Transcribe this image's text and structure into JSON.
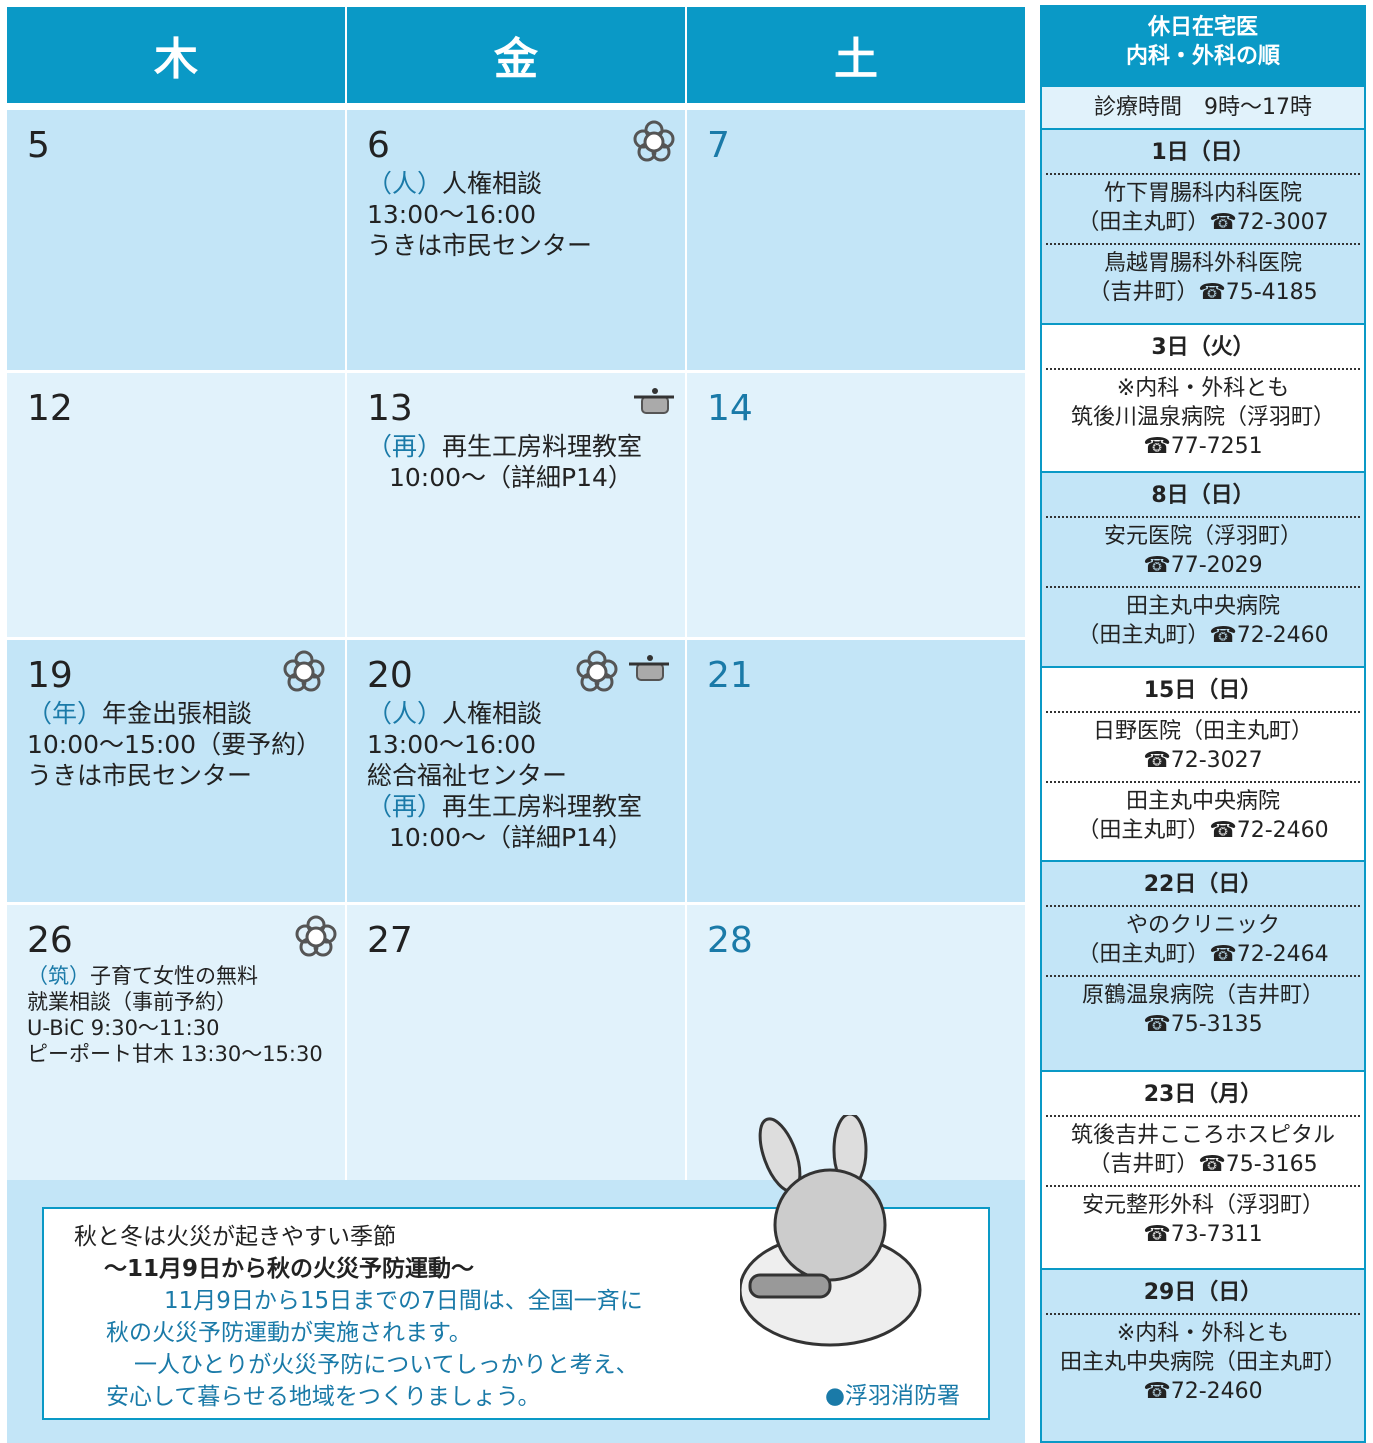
{
  "calendar": {
    "headers": [
      "木",
      "金",
      "土"
    ],
    "rows": [
      {
        "cells": [
          {
            "day": "5",
            "events": []
          },
          {
            "day": "6",
            "events": [
              {
                "tag": "（人）",
                "text": "人権相談",
                "lines": [
                  "13:00～16:00",
                  "うきは市民センター"
                ]
              }
            ]
          },
          {
            "day": "7",
            "events": []
          }
        ]
      },
      {
        "cells": [
          {
            "day": "12",
            "events": []
          },
          {
            "day": "13",
            "events": [
              {
                "tag": "（再）",
                "text": "再生工房料理教室",
                "lines": [
                  "10:00～（詳細P14）"
                ]
              }
            ]
          },
          {
            "day": "14",
            "events": []
          }
        ]
      },
      {
        "cells": [
          {
            "day": "19",
            "events": [
              {
                "tag": "（年）",
                "text": "年金出張相談",
                "lines": [
                  "10:00～15:00（要予約）",
                  "うきは市民センター"
                ]
              }
            ]
          },
          {
            "day": "20",
            "events": [
              {
                "tag": "（人）",
                "text": "人権相談",
                "lines": [
                  "13:00～16:00",
                  "総合福祉センター"
                ]
              },
              {
                "tag": "（再）",
                "text": "再生工房料理教室",
                "lines": [
                  "10:00～（詳細P14）"
                ]
              }
            ]
          },
          {
            "day": "21",
            "events": []
          }
        ]
      },
      {
        "cells": [
          {
            "day": "26",
            "events": [
              {
                "tag": "（筑）",
                "text": "子育て女性の無料",
                "lines": [
                  "就業相談（事前予約）",
                  "U-BiC 9:30～11:30",
                  "ピーポート甘木 13:30～15:30"
                ]
              }
            ]
          },
          {
            "day": "27",
            "events": []
          },
          {
            "day": "28",
            "events": []
          }
        ]
      }
    ]
  },
  "notice": {
    "title": "秋と冬は火災が起きやすい季節",
    "subtitle": "～11月9日から秋の火災予防運動～",
    "body": [
      "11月9日から15日までの7日間は、全国一斉に",
      "秋の火災予防運動が実施されます。",
      "一人ひとりが火災予防についてしっかりと考え、",
      "安心して暮らせる地域をつくりましょう。"
    ],
    "source": "●浮羽消防署"
  },
  "sidebar": {
    "title": [
      "休日在宅医",
      "内科・外科の順"
    ],
    "hours": "診療時間　9時～17時",
    "days": [
      {
        "date": "1日（日）",
        "entries": [
          [
            "竹下胃腸科内科医院",
            "（田主丸町）☎72-3007"
          ],
          [
            "鳥越胃腸科外科医院",
            "（吉井町）☎75-4185"
          ]
        ]
      },
      {
        "date": "3日（火）",
        "entries": [
          [
            "※内科・外科とも",
            "筑後川温泉病院（浮羽町）",
            "☎77-7251"
          ]
        ]
      },
      {
        "date": "8日（日）",
        "entries": [
          [
            "安元医院（浮羽町）",
            "☎77-2029"
          ],
          [
            "田主丸中央病院",
            "（田主丸町）☎72-2460"
          ]
        ]
      },
      {
        "date": "15日（日）",
        "entries": [
          [
            "日野医院（田主丸町）",
            "☎72-3027"
          ],
          [
            "田主丸中央病院",
            "（田主丸町）☎72-2460"
          ]
        ]
      },
      {
        "date": "22日（日）",
        "entries": [
          [
            "やのクリニック",
            "（田主丸町）☎72-2464"
          ],
          [
            "原鶴温泉病院（吉井町）",
            "☎75-3135"
          ]
        ]
      },
      {
        "date": "23日（月）",
        "entries": [
          [
            "筑後吉井こころホスピタル",
            "（吉井町）☎75-3165"
          ],
          [
            "安元整形外科（浮羽町）",
            "☎73-7311"
          ]
        ]
      },
      {
        "date": "29日（日）",
        "entries": [
          [
            "※内科・外科とも",
            "田主丸中央病院（田主丸町）",
            "☎72-2460"
          ]
        ]
      }
    ]
  }
}
